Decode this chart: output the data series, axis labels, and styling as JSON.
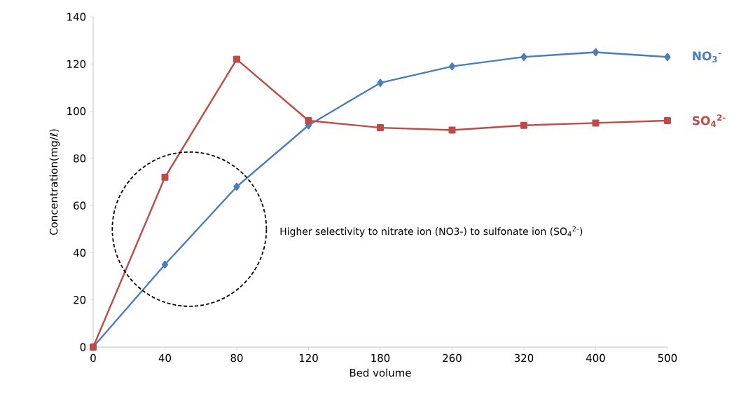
{
  "chart_data": {
    "type": "line",
    "xlabel": "Bed volume",
    "ylabel": "Concentration(mg/ℓ)",
    "categories": [
      "0",
      "40",
      "80",
      "120",
      "180",
      "260",
      "320",
      "400",
      "500"
    ],
    "ylim": [
      0,
      140
    ],
    "yticks": [
      0,
      20,
      40,
      60,
      80,
      100,
      120,
      140
    ],
    "grid": false,
    "series": [
      {
        "name": "NO$_{3}$$^{-}$",
        "color": "#4a7ebb",
        "marker": "diamond",
        "values": [
          0,
          35,
          68,
          94,
          112,
          119,
          123,
          125,
          123
        ]
      },
      {
        "name": "SO$_{4}$$^{2-}$",
        "color": "#be4b48",
        "marker": "square",
        "values": [
          0,
          72,
          122,
          96,
          93,
          92,
          94,
          95,
          96
        ]
      }
    ],
    "annotations": [
      "Higher selectivity to nitrate ion (NO3-) to sulfonate ion (SO$_{4}$$^{2-}$)"
    ]
  }
}
